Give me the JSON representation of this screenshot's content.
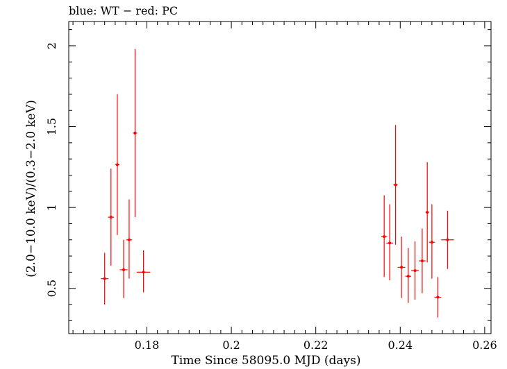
{
  "chart_data": {
    "type": "scatter",
    "title": "blue: WT − red: PC",
    "xlabel": "Time Since 58095.0 MJD (days)",
    "ylabel": "(2.0−10.0 keV)/(0.3−2.0 keV)",
    "xlim": [
      0.1615,
      0.2615
    ],
    "ylim": [
      0.22,
      2.15
    ],
    "x_ticks": [
      0.18,
      0.2,
      0.22,
      0.24,
      0.26
    ],
    "x_tick_labels": [
      "0.18",
      "0.2",
      "0.22",
      "0.24",
      "0.26"
    ],
    "y_ticks": [
      0.5,
      1,
      1.5,
      2
    ],
    "y_tick_labels": [
      "0.5",
      "1",
      "1.5",
      "2"
    ],
    "grid": false,
    "legend": "none",
    "series": [
      {
        "color": "#ff0000",
        "points": [
          {
            "x": 0.17,
            "y": 0.56,
            "xerr": 0.0009,
            "ylo": 0.4,
            "yhi": 0.72
          },
          {
            "x": 0.1715,
            "y": 0.94,
            "xerr": 0.0007,
            "ylo": 0.64,
            "yhi": 1.24
          },
          {
            "x": 0.173,
            "y": 1.265,
            "xerr": 0.0005,
            "ylo": 0.83,
            "yhi": 1.7
          },
          {
            "x": 0.1745,
            "y": 0.615,
            "xerr": 0.0009,
            "ylo": 0.44,
            "yhi": 0.8
          },
          {
            "x": 0.1758,
            "y": 0.8,
            "xerr": 0.0007,
            "ylo": 0.56,
            "yhi": 1.05
          },
          {
            "x": 0.1772,
            "y": 1.46,
            "xerr": 0.0005,
            "ylo": 0.94,
            "yhi": 1.98
          },
          {
            "x": 0.1792,
            "y": 0.6,
            "xerr": 0.0016,
            "ylo": 0.475,
            "yhi": 0.735
          },
          {
            "x": 0.2362,
            "y": 0.82,
            "xerr": 0.0007,
            "ylo": 0.57,
            "yhi": 1.075
          },
          {
            "x": 0.2375,
            "y": 0.78,
            "xerr": 0.0008,
            "ylo": 0.55,
            "yhi": 1.02
          },
          {
            "x": 0.2389,
            "y": 1.14,
            "xerr": 0.0005,
            "ylo": 0.77,
            "yhi": 1.51
          },
          {
            "x": 0.2403,
            "y": 0.63,
            "xerr": 0.0009,
            "ylo": 0.44,
            "yhi": 0.82
          },
          {
            "x": 0.2419,
            "y": 0.575,
            "xerr": 0.0007,
            "ylo": 0.41,
            "yhi": 0.75
          },
          {
            "x": 0.2435,
            "y": 0.61,
            "xerr": 0.0009,
            "ylo": 0.43,
            "yhi": 0.79
          },
          {
            "x": 0.2452,
            "y": 0.67,
            "xerr": 0.0008,
            "ylo": 0.47,
            "yhi": 0.87
          },
          {
            "x": 0.2464,
            "y": 0.97,
            "xerr": 0.0004,
            "ylo": 0.66,
            "yhi": 1.28
          },
          {
            "x": 0.2475,
            "y": 0.785,
            "xerr": 0.0007,
            "ylo": 0.56,
            "yhi": 1.02
          },
          {
            "x": 0.2489,
            "y": 0.445,
            "xerr": 0.0008,
            "ylo": 0.32,
            "yhi": 0.57
          },
          {
            "x": 0.2512,
            "y": 0.8,
            "xerr": 0.0015,
            "ylo": 0.62,
            "yhi": 0.98
          }
        ]
      }
    ]
  }
}
